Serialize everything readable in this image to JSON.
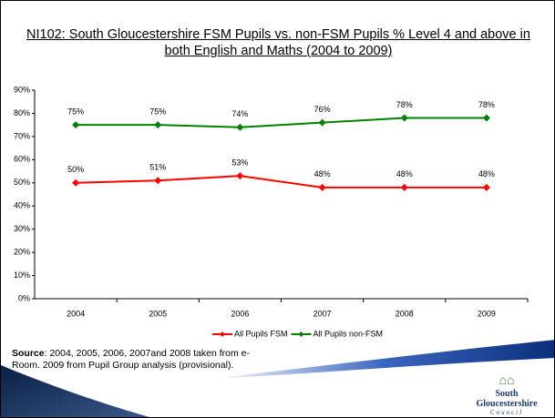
{
  "title": "NI102: South Gloucestershire FSM Pupils vs. non-FSM Pupils % Level 4 and above in both English and Maths (2004 to 2009)",
  "chart_data": {
    "type": "line",
    "categories": [
      "2004",
      "2005",
      "2006",
      "2007",
      "2008",
      "2009"
    ],
    "series": [
      {
        "name": "All Pupils FSM",
        "color": "#ff0000",
        "values": [
          50,
          51,
          53,
          48,
          48,
          48
        ],
        "value_labels": [
          "50%",
          "51%",
          "53%",
          "48%",
          "48%",
          "48%"
        ]
      },
      {
        "name": "All Pupils non-FSM",
        "color": "#008000",
        "values": [
          75,
          75,
          74,
          76,
          78,
          78
        ],
        "value_labels": [
          "75%",
          "75%",
          "74%",
          "76%",
          "78%",
          "78%"
        ]
      }
    ],
    "ylim": [
      0,
      90
    ],
    "yticks": [
      {
        "value": 0,
        "label": "0%"
      },
      {
        "value": 10,
        "label": "10%"
      },
      {
        "value": 20,
        "label": "20%"
      },
      {
        "value": 30,
        "label": "30%"
      },
      {
        "value": 40,
        "label": "40%"
      },
      {
        "value": 50,
        "label": "50%"
      },
      {
        "value": 60,
        "label": "60%"
      },
      {
        "value": 70,
        "label": "70%"
      },
      {
        "value": 80,
        "label": "80%"
      },
      {
        "value": 90,
        "label": "90%"
      }
    ],
    "grid": false,
    "legend": "bottom"
  },
  "source": {
    "label": "Source",
    "text": ": 2004, 2005, 2006, 2007and 2008 taken from e-Room.  2009 from Pupil Group analysis (provisional)."
  },
  "logo": {
    "name": "South Gloucestershire",
    "sub": "Council"
  }
}
